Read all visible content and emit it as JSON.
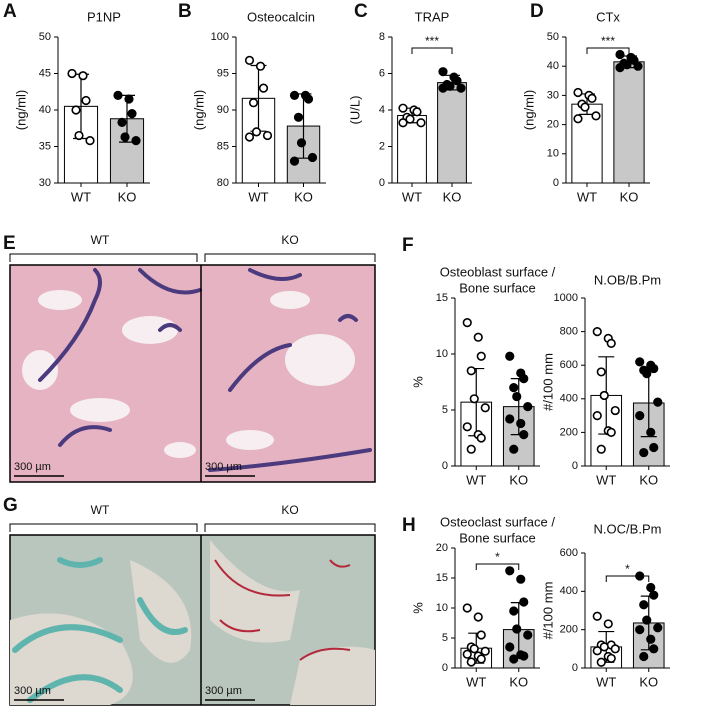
{
  "panel_labels": [
    "A",
    "B",
    "C",
    "D",
    "E",
    "F",
    "G",
    "H"
  ],
  "images": [
    {
      "left": "WT",
      "right": "KO",
      "scale_bars": [
        "300 µm",
        "300 µm"
      ]
    },
    {
      "left": "WT",
      "right": "KO",
      "scale_bars": [
        "300 µm",
        "300 µm"
      ]
    }
  ],
  "chart_data": [
    {
      "type": "bar",
      "title": "P1NP",
      "ylabel": "(ng/ml)",
      "categories": [
        "WT",
        "KO"
      ],
      "values": [
        40.5,
        38.8
      ],
      "errors": [
        4.4,
        3.2
      ],
      "points": [
        [
          45,
          44.7,
          41.3,
          40,
          36.5,
          35.8
        ],
        [
          42,
          41.5,
          39.5,
          38.3,
          36.3,
          35.8
        ]
      ],
      "colors": [
        "#ffffff",
        "#c8c8c8"
      ],
      "marker_fills": [
        "#ffffff",
        "#000000"
      ],
      "ylim": [
        30,
        50
      ],
      "yticks": [
        30,
        35,
        40,
        45,
        50
      ]
    },
    {
      "type": "bar",
      "title": "Osteocalcin",
      "ylabel": "(ng/ml)",
      "categories": [
        "WT",
        "KO"
      ],
      "values": [
        91.6,
        87.8
      ],
      "errors": [
        4.5,
        4.4
      ],
      "points": [
        [
          96.8,
          96,
          93,
          91,
          87,
          86.5,
          86.3
        ],
        [
          92,
          92,
          91.5,
          89,
          85.5,
          83.5,
          83
        ]
      ],
      "colors": [
        "#ffffff",
        "#c8c8c8"
      ],
      "marker_fills": [
        "#ffffff",
        "#000000"
      ],
      "ylim": [
        80,
        100
      ],
      "yticks": [
        80,
        85,
        90,
        95,
        100
      ]
    },
    {
      "type": "bar",
      "title": "TRAP",
      "ylabel": "(U/L)",
      "categories": [
        "WT",
        "KO"
      ],
      "values": [
        3.7,
        5.5
      ],
      "errors": [
        0.4,
        0.4
      ],
      "points": [
        [
          4.1,
          4,
          3.9,
          3.6,
          3.5,
          3.3,
          3.3
        ],
        [
          6.1,
          5.8,
          5.6,
          5.4,
          5.3,
          5.2,
          5.2
        ]
      ],
      "colors": [
        "#ffffff",
        "#c8c8c8"
      ],
      "marker_fills": [
        "#ffffff",
        "#000000"
      ],
      "ylim": [
        0,
        8
      ],
      "yticks": [
        0,
        2,
        4,
        6,
        8
      ],
      "annotation": "***"
    },
    {
      "type": "bar",
      "title": "CTx",
      "ylabel": "(ng/ml)",
      "categories": [
        "WT",
        "KO"
      ],
      "values": [
        27,
        41.5
      ],
      "errors": [
        3.5,
        2
      ],
      "points": [
        [
          31,
          30,
          29,
          27,
          26,
          23,
          22
        ],
        [
          44,
          43,
          42,
          41,
          40.5,
          40,
          39.5
        ]
      ],
      "colors": [
        "#ffffff",
        "#c8c8c8"
      ],
      "marker_fills": [
        "#ffffff",
        "#000000"
      ],
      "ylim": [
        0,
        50
      ],
      "yticks": [
        0,
        10,
        20,
        30,
        40,
        50
      ],
      "annotation": "***"
    },
    {
      "type": "bar",
      "title": [
        "Osteoblast surface /",
        "Bone surface"
      ],
      "ylabel": "%",
      "categories": [
        "WT",
        "KO"
      ],
      "values": [
        5.7,
        5.3
      ],
      "errors": [
        3,
        2.5
      ],
      "points": [
        [
          12.8,
          11.5,
          9.8,
          8.5,
          6,
          5.2,
          3.5,
          2.8,
          2.5,
          1.5
        ],
        [
          9.8,
          8.3,
          7.8,
          7,
          6.2,
          5.3,
          4.2,
          3.8,
          2.8,
          1.5
        ]
      ],
      "colors": [
        "#ffffff",
        "#c8c8c8"
      ],
      "marker_fills": [
        "#ffffff",
        "#000000"
      ],
      "ylim": [
        0,
        15
      ],
      "yticks": [
        0,
        5,
        10,
        15
      ]
    },
    {
      "type": "bar",
      "title": "N.OB/B.Pm",
      "ylabel": "#/100 mm",
      "categories": [
        "WT",
        "KO"
      ],
      "values": [
        420,
        375
      ],
      "errors": [
        230,
        200
      ],
      "points": [
        [
          800,
          760,
          730,
          560,
          420,
          330,
          300,
          210,
          200,
          100
        ],
        [
          620,
          600,
          580,
          570,
          550,
          380,
          300,
          200,
          110,
          80
        ]
      ],
      "colors": [
        "#ffffff",
        "#c8c8c8"
      ],
      "marker_fills": [
        "#ffffff",
        "#000000"
      ],
      "ylim": [
        0,
        1000
      ],
      "yticks": [
        0,
        200,
        400,
        600,
        800,
        1000
      ]
    },
    {
      "type": "bar",
      "title": [
        "Osteoclast surface /",
        "Bone surface"
      ],
      "ylabel": "%",
      "categories": [
        "WT",
        "KO"
      ],
      "values": [
        3.3,
        6.4
      ],
      "errors": [
        2.5,
        4.5
      ],
      "points": [
        [
          10,
          8.5,
          5.5,
          3.5,
          3.2,
          2.8,
          2.3,
          2,
          1.5,
          1
        ],
        [
          16.2,
          14.8,
          11,
          9.5,
          6.5,
          5.5,
          3.5,
          2.2,
          2,
          1.5
        ]
      ],
      "colors": [
        "#ffffff",
        "#c8c8c8"
      ],
      "marker_fills": [
        "#ffffff",
        "#000000"
      ],
      "ylim": [
        0,
        20
      ],
      "yticks": [
        0,
        5,
        10,
        15,
        20
      ],
      "annotation": "*"
    },
    {
      "type": "bar",
      "title": "N.OC/B.Pm",
      "ylabel": "#/100 mm",
      "categories": [
        "WT",
        "KO"
      ],
      "values": [
        110,
        235
      ],
      "errors": [
        80,
        140
      ],
      "points": [
        [
          270,
          230,
          120,
          120,
          110,
          100,
          90,
          60,
          50,
          30
        ],
        [
          480,
          420,
          380,
          330,
          250,
          210,
          200,
          150,
          100,
          60
        ]
      ],
      "colors": [
        "#ffffff",
        "#c8c8c8"
      ],
      "marker_fills": [
        "#ffffff",
        "#000000"
      ],
      "ylim": [
        0,
        600
      ],
      "yticks": [
        0,
        200,
        400,
        600
      ],
      "annotation": "*"
    }
  ]
}
